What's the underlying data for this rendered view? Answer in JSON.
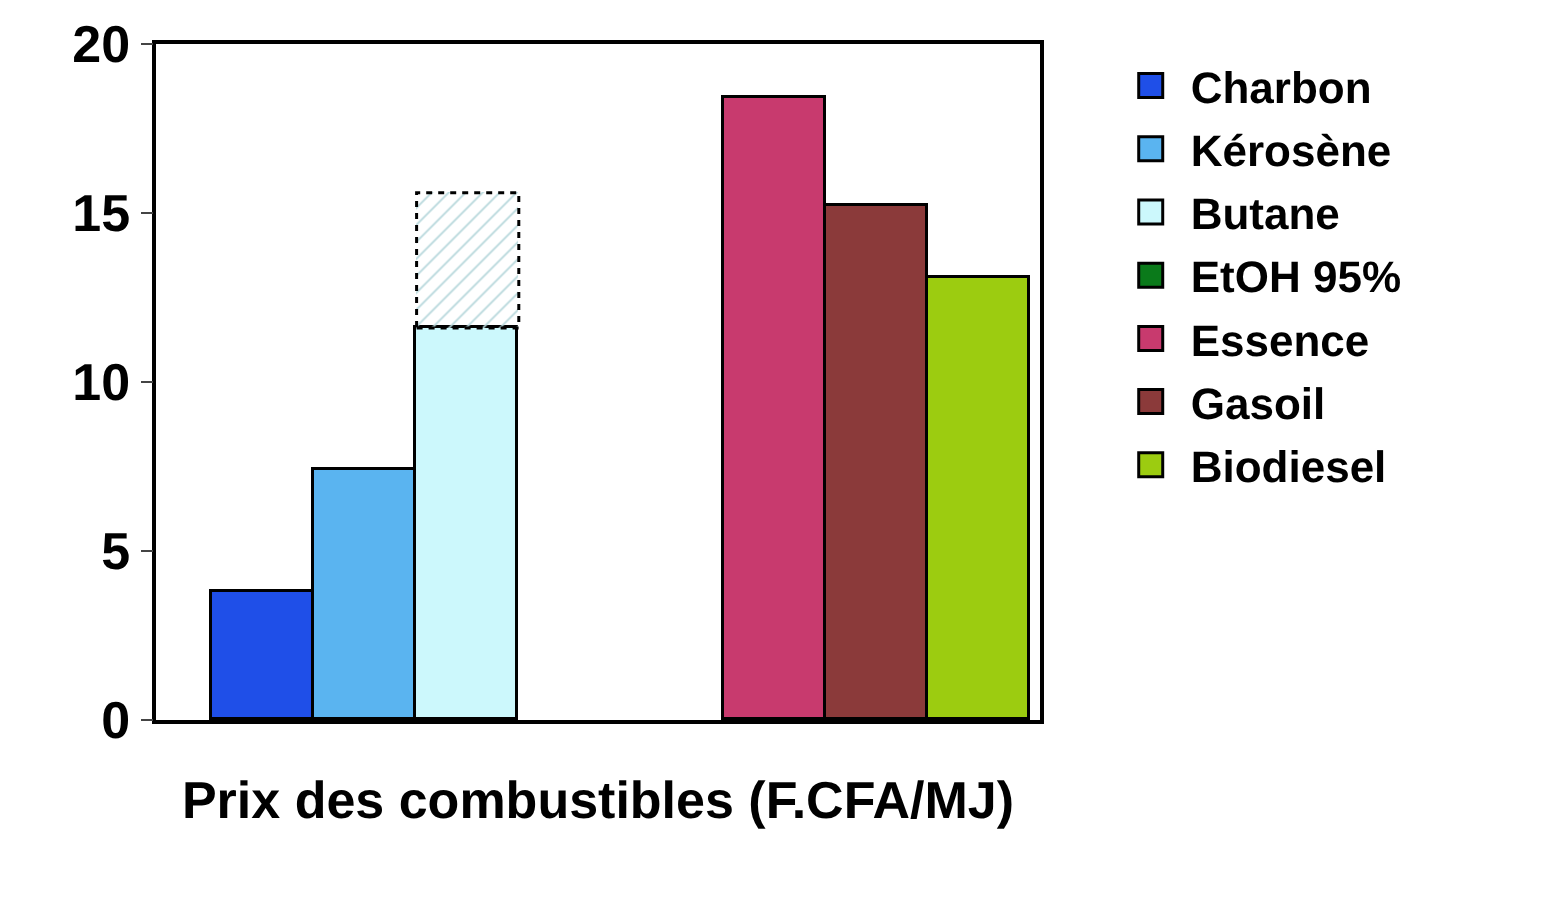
{
  "chart_data": {
    "type": "bar",
    "xlabel": "Prix des combustibles (F.CFA/MJ)",
    "categories": [
      null,
      null,
      null,
      null,
      null,
      null,
      null,
      null
    ],
    "series": [
      {
        "name": "Charbon",
        "color": "#1f4fe8",
        "values": [
          3.8,
          null,
          null,
          null,
          null,
          null,
          null,
          null
        ]
      },
      {
        "name": "Kérosène",
        "color": "#5ab4f0",
        "values": [
          null,
          7.4,
          null,
          null,
          null,
          null,
          null,
          null
        ]
      },
      {
        "name": "Butane",
        "color": "#ccf8fc",
        "values": [
          null,
          null,
          11.6,
          null,
          null,
          null,
          null,
          null
        ]
      },
      {
        "color": "#e4f4f6",
        "values": [
          null,
          null,
          4.0,
          null,
          null,
          null,
          null,
          null
        ],
        "line_style": "dotted"
      },
      {
        "name": "EtOH 95%",
        "color": "#0a7a1a",
        "values": [
          null,
          null,
          null,
          null,
          null,
          null,
          null,
          null
        ]
      },
      {
        "name": "Essence",
        "color": "#c83a6e",
        "values": [
          null,
          null,
          null,
          null,
          null,
          18.4,
          null,
          null
        ]
      },
      {
        "name": "Gasoil",
        "color": "#8b3a3a",
        "values": [
          null,
          null,
          null,
          null,
          null,
          null,
          15.2,
          null
        ]
      },
      {
        "name": "Biodiesel",
        "color": "#9ccc10",
        "values": [
          null,
          null,
          null,
          null,
          null,
          null,
          null,
          13.1
        ]
      }
    ],
    "stacked": true,
    "ylim": [
      0,
      20
    ],
    "yticks": [
      0,
      5,
      10,
      15,
      20
    ],
    "grid": false,
    "legend": "right"
  }
}
